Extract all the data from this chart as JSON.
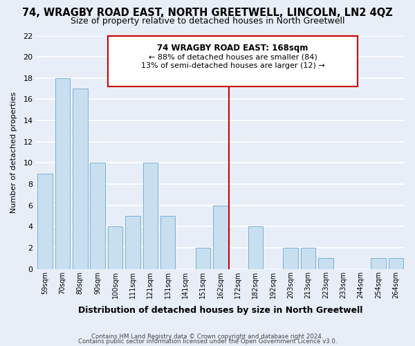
{
  "title": "74, WRAGBY ROAD EAST, NORTH GREETWELL, LINCOLN, LN2 4QZ",
  "subtitle": "Size of property relative to detached houses in North Greetwell",
  "xlabel": "Distribution of detached houses by size in North Greetwell",
  "ylabel": "Number of detached properties",
  "bar_labels": [
    "59sqm",
    "70sqm",
    "80sqm",
    "90sqm",
    "100sqm",
    "111sqm",
    "121sqm",
    "131sqm",
    "141sqm",
    "151sqm",
    "162sqm",
    "172sqm",
    "182sqm",
    "192sqm",
    "203sqm",
    "213sqm",
    "223sqm",
    "233sqm",
    "244sqm",
    "254sqm",
    "264sqm"
  ],
  "bar_values": [
    9,
    18,
    17,
    10,
    4,
    5,
    10,
    5,
    0,
    2,
    6,
    0,
    4,
    0,
    2,
    2,
    1,
    0,
    0,
    1,
    1
  ],
  "bar_color": "#c8dff0",
  "bar_edge_color": "#7bafd4",
  "ylim": [
    0,
    22
  ],
  "yticks": [
    0,
    2,
    4,
    6,
    8,
    10,
    12,
    14,
    16,
    18,
    20,
    22
  ],
  "annotation_title": "74 WRAGBY ROAD EAST: 168sqm",
  "annotation_line1": "← 88% of detached houses are smaller (84)",
  "annotation_line2": "13% of semi-detached houses are larger (12) →",
  "footer1": "Contains HM Land Registry data © Crown copyright and database right 2024.",
  "footer2": "Contains public sector information licensed under the Open Government Licence v3.0.",
  "bg_color": "#e8eef8",
  "grid_color": "#ffffff",
  "annotation_box_color": "#ffffff",
  "annotation_border_color": "#cc0000",
  "red_line_color": "#cc0000",
  "title_fontsize": 10.5,
  "subtitle_fontsize": 9
}
